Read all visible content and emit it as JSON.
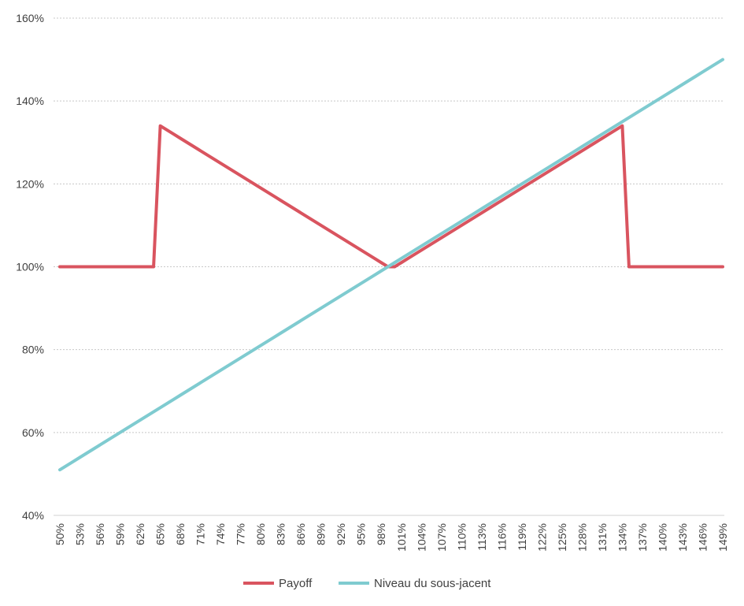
{
  "chart_data": {
    "type": "line",
    "x": [
      "50%",
      "51%",
      "52%",
      "53%",
      "54%",
      "55%",
      "56%",
      "57%",
      "58%",
      "59%",
      "60%",
      "61%",
      "62%",
      "63%",
      "64%",
      "65%",
      "66%",
      "67%",
      "68%",
      "69%",
      "70%",
      "71%",
      "72%",
      "73%",
      "74%",
      "75%",
      "76%",
      "77%",
      "78%",
      "79%",
      "80%",
      "81%",
      "82%",
      "83%",
      "84%",
      "85%",
      "86%",
      "87%",
      "88%",
      "89%",
      "90%",
      "91%",
      "92%",
      "93%",
      "94%",
      "95%",
      "96%",
      "97%",
      "98%",
      "99%",
      "100%",
      "101%",
      "102%",
      "103%",
      "104%",
      "105%",
      "106%",
      "107%",
      "108%",
      "109%",
      "110%",
      "111%",
      "112%",
      "113%",
      "114%",
      "115%",
      "116%",
      "117%",
      "118%",
      "119%",
      "120%",
      "121%",
      "122%",
      "123%",
      "124%",
      "125%",
      "126%",
      "127%",
      "128%",
      "129%",
      "130%",
      "131%",
      "132%",
      "133%",
      "134%",
      "135%",
      "136%",
      "137%",
      "138%",
      "139%",
      "140%",
      "141%",
      "142%",
      "143%",
      "144%",
      "145%",
      "146%",
      "147%",
      "148%",
      "149%"
    ],
    "x_tick_labels": [
      "50%",
      "53%",
      "56%",
      "59%",
      "62%",
      "65%",
      "68%",
      "71%",
      "74%",
      "77%",
      "80%",
      "83%",
      "86%",
      "89%",
      "92%",
      "95%",
      "98%",
      "101%",
      "104%",
      "107%",
      "110%",
      "113%",
      "116%",
      "119%",
      "122%",
      "125%",
      "128%",
      "131%",
      "134%",
      "137%",
      "140%",
      "143%",
      "146%",
      "149%"
    ],
    "y_tick_labels": [
      "40%",
      "60%",
      "80%",
      "100%",
      "120%",
      "140%",
      "160%"
    ],
    "ylim": [
      40,
      160
    ],
    "y_ticks": [
      40,
      60,
      80,
      100,
      120,
      140,
      160
    ],
    "grid": true,
    "legend_position": "bottom",
    "series": [
      {
        "name": "Payoff",
        "color": "#D9545F",
        "values": [
          100,
          100,
          100,
          100,
          100,
          100,
          100,
          100,
          100,
          100,
          100,
          100,
          100,
          100,
          100,
          134,
          133,
          132,
          131,
          130,
          129,
          128,
          127,
          126,
          125,
          124,
          123,
          122,
          121,
          120,
          119,
          118,
          117,
          116,
          115,
          114,
          113,
          112,
          111,
          110,
          109,
          108,
          107,
          106,
          105,
          104,
          103,
          102,
          101,
          100,
          100,
          101,
          102,
          103,
          104,
          105,
          106,
          107,
          108,
          109,
          110,
          111,
          112,
          113,
          114,
          115,
          116,
          117,
          118,
          119,
          120,
          121,
          122,
          123,
          124,
          125,
          126,
          127,
          128,
          129,
          130,
          131,
          132,
          133,
          134,
          100,
          100,
          100,
          100,
          100,
          100,
          100,
          100,
          100,
          100,
          100,
          100,
          100,
          100,
          100
        ]
      },
      {
        "name": "Niveau du sous-jacent",
        "color": "#7FCBD0",
        "values": [
          51,
          52,
          53,
          54,
          55,
          56,
          57,
          58,
          59,
          60,
          61,
          62,
          63,
          64,
          65,
          66,
          67,
          68,
          69,
          70,
          71,
          72,
          73,
          74,
          75,
          76,
          77,
          78,
          79,
          80,
          81,
          82,
          83,
          84,
          85,
          86,
          87,
          88,
          89,
          90,
          91,
          92,
          93,
          94,
          95,
          96,
          97,
          98,
          99,
          100,
          101,
          102,
          103,
          104,
          105,
          106,
          107,
          108,
          109,
          110,
          111,
          112,
          113,
          114,
          115,
          116,
          117,
          118,
          119,
          120,
          121,
          122,
          123,
          124,
          125,
          126,
          127,
          128,
          129,
          130,
          131,
          132,
          133,
          134,
          135,
          136,
          137,
          138,
          139,
          140,
          141,
          142,
          143,
          144,
          145,
          146,
          147,
          148,
          149,
          150
        ]
      }
    ]
  }
}
